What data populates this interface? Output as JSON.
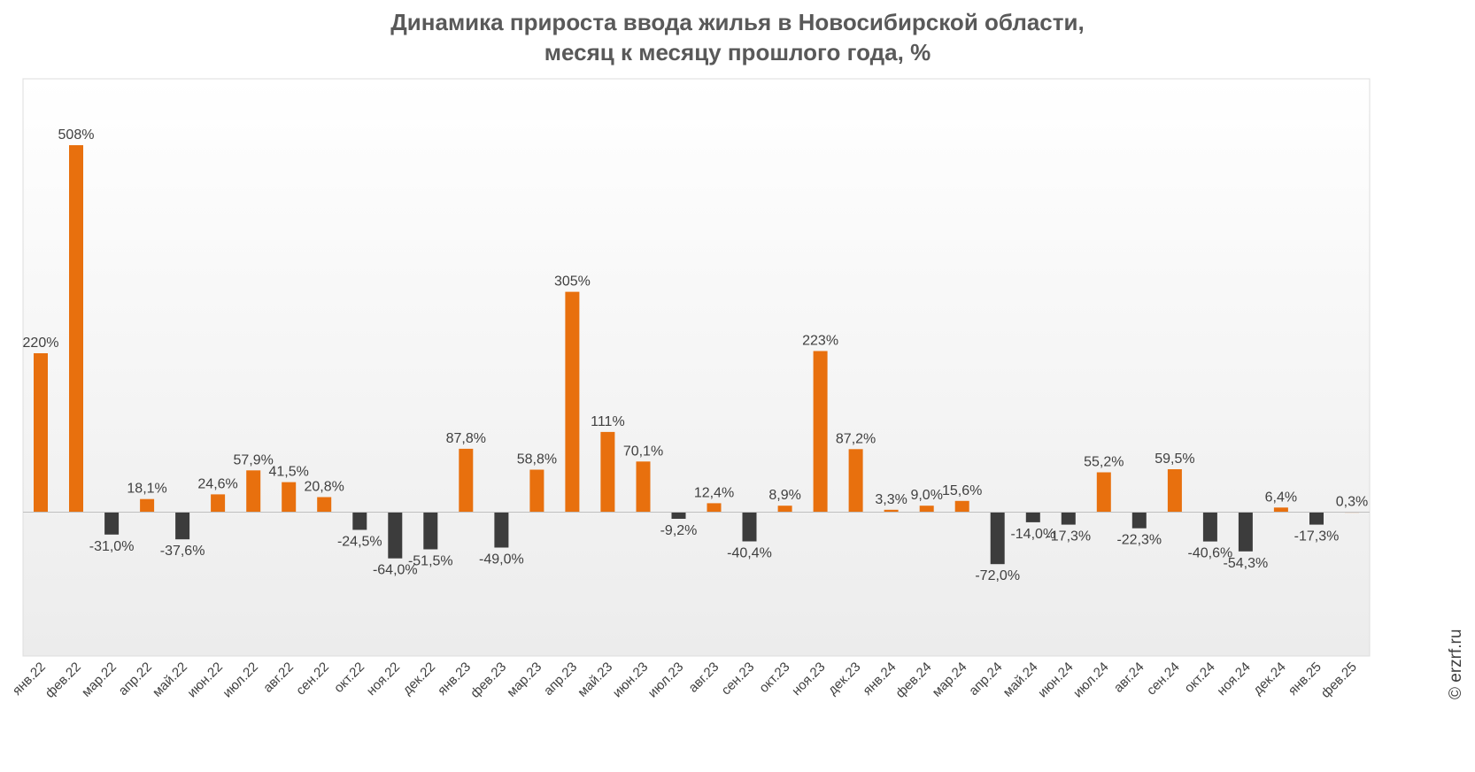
{
  "title_line1": "Динамика прироста ввода жилья в Новосибирской области,",
  "title_line2": "месяц к месяцу прошлого года, %",
  "credit": "© erzrf.ru",
  "colors": {
    "positive": "#E8700E",
    "negative": "#3C3C3C",
    "grid_top": "#ffffff",
    "grid_bottom": "#ececec",
    "frame": "#dddddd"
  },
  "chart_data": {
    "type": "bar",
    "title": "Динамика прироста ввода жилья в Новосибирской области, месяц к месяцу прошлого года, %",
    "categories": [
      "янв.22",
      "фев.22",
      "мар.22",
      "апр.22",
      "май.22",
      "июн.22",
      "июл.22",
      "авг.22",
      "сен.22",
      "окт.22",
      "ноя.22",
      "дек.22",
      "янв.23",
      "фев.23",
      "мар.23",
      "апр.23",
      "май.23",
      "июн.23",
      "июл.23",
      "авг.23",
      "сен.23",
      "окт.23",
      "ноя.23",
      "дек.23",
      "янв.24",
      "фев.24",
      "мар.24",
      "апр.24",
      "май.24",
      "июн.24",
      "июл.24",
      "авг.24",
      "сен.24",
      "окт.24",
      "ноя.24",
      "дек.24",
      "янв.25",
      "фев.25"
    ],
    "values": [
      220,
      508,
      -31.0,
      18.1,
      -37.6,
      24.6,
      57.9,
      41.5,
      20.8,
      -24.5,
      -64.0,
      -51.5,
      87.8,
      -49.0,
      58.8,
      305,
      111,
      70.1,
      -9.2,
      12.4,
      -40.4,
      8.9,
      223,
      87.2,
      3.3,
      9.0,
      15.6,
      -72.0,
      -14.0,
      -17.3,
      55.2,
      -22.3,
      59.5,
      -40.6,
      -54.3,
      6.4,
      -17.3,
      0.3
    ],
    "labels": [
      "220%",
      "508%",
      "-31,0%",
      "18,1%",
      "-37,6%",
      "24,6%",
      "57,9%",
      "41,5%",
      "20,8%",
      "-24,5%",
      "-64,0%",
      "-51,5%",
      "87,8%",
      "-49,0%",
      "58,8%",
      "305%",
      "111%",
      "70,1%",
      "-9,2%",
      "12,4%",
      "-40,4%",
      "8,9%",
      "223%",
      "87,2%",
      "3,3%",
      "9,0%",
      "15,6%",
      "-72,0%",
      "-14,0%",
      "-17,3%",
      "55,2%",
      "-22,3%",
      "59,5%",
      "-40,6%",
      "-54,3%",
      "6,4%",
      "-17,3%",
      "0,3%"
    ],
    "xlabel": "",
    "ylabel": "",
    "grid": false,
    "legend": "none"
  }
}
